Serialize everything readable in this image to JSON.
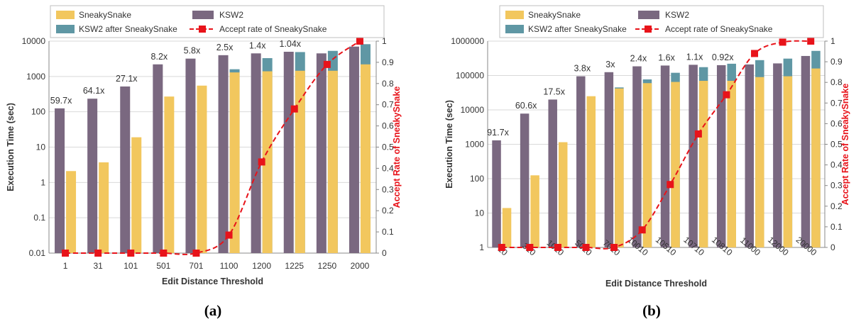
{
  "colors": {
    "sneaky": "#F2C75E",
    "ksw2": "#7A6880",
    "after": "#5F97A4",
    "accept": "#E8131A",
    "grid": "#d9d9d9",
    "axis_text": "#333333"
  },
  "legend": {
    "sneaky": "SneakySnake",
    "ksw2": "KSW2",
    "after": "KSW2 after SneakySnake",
    "accept": "Accept rate of SneakySnake"
  },
  "chart_data": [
    {
      "type": "bar",
      "panel_label": "(a)",
      "xlabel": "Edit Distance Threshold",
      "ylabel": "Execution Time (sec)",
      "ylabel_right": "Accept Rate of SneakySnake",
      "yscale": "log",
      "ylim": [
        0.01,
        10000
      ],
      "y_ticks": [
        "0.01",
        "0.1",
        "1",
        "10",
        "100",
        "1000",
        "10000"
      ],
      "y2lim": [
        0,
        1
      ],
      "y2_ticks": [
        "0",
        "0.1",
        "0.2",
        "0.3",
        "0.4",
        "0.5",
        "0.6",
        "0.7",
        "0.8",
        "0.9",
        "1"
      ],
      "categories": [
        "1",
        "31",
        "101",
        "501",
        "701",
        "1100",
        "1200",
        "1225",
        "1250",
        "2000"
      ],
      "series": [
        {
          "name": "SneakySnake",
          "values": [
            2.1,
            3.7,
            19,
            270,
            550,
            1300,
            1400,
            1450,
            1450,
            2200
          ]
        },
        {
          "name": "KSW2",
          "values": [
            125,
            235,
            520,
            2200,
            3200,
            4000,
            4500,
            5000,
            4500,
            7000
          ]
        },
        {
          "name": "KSW2 after SneakySnake",
          "values": [
            0.01,
            0.01,
            0.01,
            0.01,
            0.01,
            1600,
            3300,
            4900,
            5300,
            8200
          ]
        },
        {
          "name": "Accept rate of SneakySnake",
          "values": [
            0,
            0,
            0,
            0,
            0,
            0.085,
            0.43,
            0.68,
            0.89,
            1.0
          ]
        }
      ],
      "speedups": [
        "59.7x",
        "64.1x",
        "27.1x",
        "8.2x",
        "5.8x",
        "2.5x",
        "1.4x",
        "1.04x",
        "",
        ""
      ],
      "grid": true,
      "legend_position": "top"
    },
    {
      "type": "bar",
      "panel_label": "(b)",
      "xlabel": "Edit Distance Threshold",
      "ylabel": "Execution Time (sec)",
      "ylabel_right": "Accept Rate of SneakySnake",
      "yscale": "log",
      "ylim": [
        1,
        1000000
      ],
      "y_ticks": [
        "1",
        "10",
        "100",
        "1000",
        "10000",
        "100000",
        "1000000"
      ],
      "y2lim": [
        0,
        1
      ],
      "y2_ticks": [
        "0",
        "0.1",
        "0.2",
        "0.3",
        "0.4",
        "0.5",
        "0.6",
        "0.7",
        "0.8",
        "0.9",
        "1"
      ],
      "categories": [
        "10",
        "310",
        "1010",
        "5010",
        "7010",
        "10010",
        "10510",
        "10710",
        "10810",
        "11000",
        "12000",
        "20000"
      ],
      "series": [
        {
          "name": "SneakySnake",
          "values": [
            14,
            125,
            1150,
            25000,
            42000,
            60000,
            65000,
            70000,
            70000,
            90000,
            95000,
            160000
          ]
        },
        {
          "name": "KSW2",
          "values": [
            1300,
            7800,
            20000,
            95000,
            125000,
            185000,
            195000,
            205000,
            200000,
            210000,
            225000,
            370000
          ]
        },
        {
          "name": "KSW2 after SneakySnake",
          "values": [
            1,
            1,
            1,
            1,
            45000,
            77000,
            120000,
            175000,
            220000,
            280000,
            310000,
            520000
          ]
        },
        {
          "name": "Accept rate of SneakySnake",
          "values": [
            0,
            0,
            0,
            0,
            0,
            0.085,
            0.305,
            0.55,
            0.74,
            0.94,
            0.995,
            1.0
          ]
        }
      ],
      "speedups": [
        "91.7x",
        "60.6x",
        "17.5x",
        "3.8x",
        "3x",
        "2.4x",
        "1.6x",
        "1.1x",
        "0.92x",
        "",
        "",
        ""
      ],
      "grid": true,
      "legend_position": "top"
    }
  ]
}
